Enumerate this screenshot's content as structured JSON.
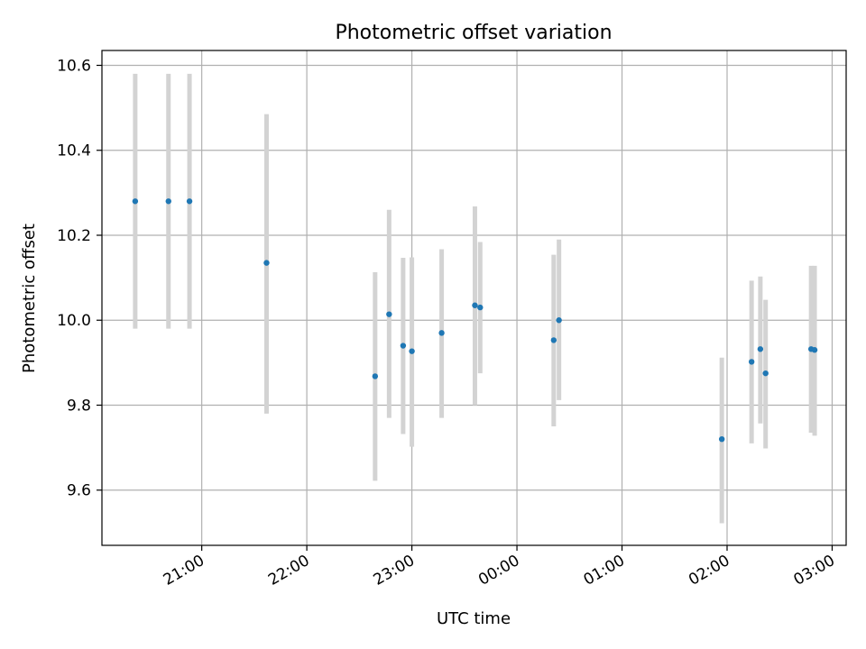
{
  "chart_data": {
    "type": "scatter",
    "title": "Photometric offset variation",
    "xlabel": "UTC time",
    "ylabel": "Photometric offset",
    "x_axis": "time",
    "x_range": [
      "20:03",
      "03:08"
    ],
    "xticks": [
      "21:00",
      "22:00",
      "23:00",
      "00:00",
      "01:00",
      "02:00",
      "03:00"
    ],
    "ylim": [
      9.47,
      10.635
    ],
    "yticks": [
      9.6,
      9.8,
      10.0,
      10.2,
      10.4,
      10.6
    ],
    "grid": true,
    "point_color": "#1f77b4",
    "errorbar_color": "#d3d3d3",
    "points": [
      {
        "time": "20:22",
        "y": 10.28,
        "ylow": 9.98,
        "yhigh": 10.58
      },
      {
        "time": "20:41",
        "y": 10.28,
        "ylow": 9.98,
        "yhigh": 10.58
      },
      {
        "time": "20:53",
        "y": 10.28,
        "ylow": 9.98,
        "yhigh": 10.58
      },
      {
        "time": "21:37",
        "y": 10.135,
        "ylow": 9.78,
        "yhigh": 10.485
      },
      {
        "time": "22:39",
        "y": 9.868,
        "ylow": 9.622,
        "yhigh": 10.113
      },
      {
        "time": "22:47",
        "y": 10.014,
        "ylow": 9.77,
        "yhigh": 10.26
      },
      {
        "time": "22:55",
        "y": 9.94,
        "ylow": 9.732,
        "yhigh": 10.147
      },
      {
        "time": "23:00",
        "y": 9.927,
        "ylow": 9.702,
        "yhigh": 10.148
      },
      {
        "time": "23:17",
        "y": 9.97,
        "ylow": 9.77,
        "yhigh": 10.167
      },
      {
        "time": "23:36",
        "y": 10.035,
        "ylow": 9.8,
        "yhigh": 10.268
      },
      {
        "time": "23:39",
        "y": 10.03,
        "ylow": 9.875,
        "yhigh": 10.184
      },
      {
        "time": "00:21",
        "y": 9.953,
        "ylow": 9.75,
        "yhigh": 10.154
      },
      {
        "time": "00:24",
        "y": 10.0,
        "ylow": 9.812,
        "yhigh": 10.19
      },
      {
        "time": "01:57",
        "y": 9.72,
        "ylow": 9.522,
        "yhigh": 9.912
      },
      {
        "time": "02:14",
        "y": 9.902,
        "ylow": 9.71,
        "yhigh": 10.093
      },
      {
        "time": "02:19",
        "y": 9.932,
        "ylow": 9.757,
        "yhigh": 10.103
      },
      {
        "time": "02:22",
        "y": 9.875,
        "ylow": 9.698,
        "yhigh": 10.048
      },
      {
        "time": "02:48",
        "y": 9.932,
        "ylow": 9.735,
        "yhigh": 10.128
      },
      {
        "time": "02:50",
        "y": 9.93,
        "ylow": 9.728,
        "yhigh": 10.128
      }
    ]
  }
}
